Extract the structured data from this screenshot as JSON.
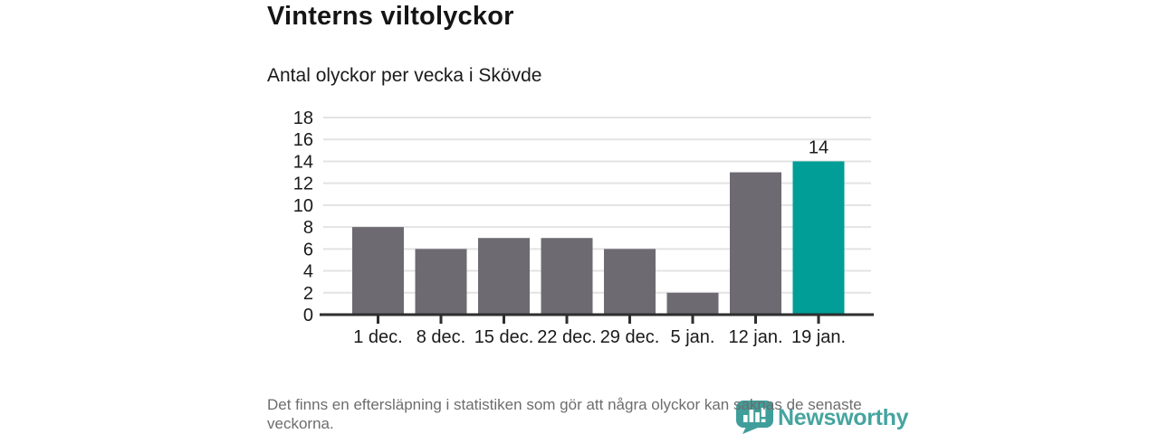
{
  "header": {
    "title": "Vinterns viltolyckor",
    "subtitle": "Antal olyckor per vecka i Skövde"
  },
  "chart_data": {
    "type": "bar",
    "title": "Vinterns viltolyckor",
    "subtitle": "Antal olyckor per vecka i Skövde",
    "categories": [
      "1 dec.",
      "8 dec.",
      "15 dec.",
      "22 dec.",
      "29 dec.",
      "5 jan.",
      "12 jan.",
      "19 jan."
    ],
    "values": [
      8,
      6,
      7,
      7,
      6,
      2,
      13,
      14
    ],
    "highlight_index": 7,
    "annotations": [
      {
        "index": 7,
        "text": "14"
      }
    ],
    "xlabel": "",
    "ylabel": "",
    "ylim": [
      0,
      18
    ],
    "ytick_step": 2,
    "grid": true,
    "legend": "none",
    "bar_color": "#6e6a72",
    "highlight_color": "#009e96",
    "grid_color": "#e3e3e3",
    "axis_color": "#2e2e2e",
    "label_color": "#1a1a1a"
  },
  "footer": {
    "note": "Det finns en eftersläpning i statistiken som gör att några olyckor kan saknas de senaste veckorna.",
    "brand": "Newsworthy",
    "brand_icon": "newsworthy-speech-bubble-barchart",
    "brand_icon_color": "#3f9e9a",
    "brand_text_color": "#46a49f"
  }
}
